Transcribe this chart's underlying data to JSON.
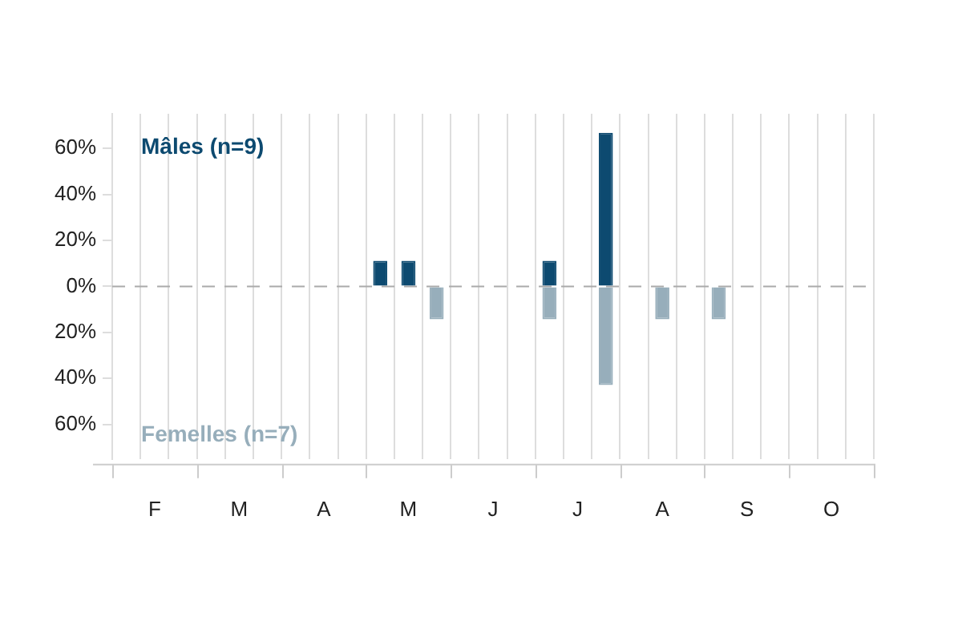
{
  "chart_data": {
    "type": "bar",
    "stacked": true,
    "categories": [
      null,
      "F",
      null,
      null,
      "M",
      null,
      null,
      "A",
      null,
      null,
      "M",
      null,
      null,
      "J",
      null,
      null,
      "J",
      null,
      null,
      "A",
      null,
      null,
      "S",
      null,
      null,
      "O",
      null
    ],
    "series": [
      {
        "name": "Mâles (n=9)",
        "color": "#0d4a70",
        "values": [
          null,
          null,
          null,
          null,
          null,
          null,
          null,
          null,
          null,
          11.1,
          11.1,
          null,
          null,
          null,
          null,
          11.1,
          null,
          66.7,
          null,
          null,
          null,
          null,
          null,
          null,
          null,
          null,
          null
        ]
      },
      {
        "name": "Femelles (n=7)",
        "color": "#97aebb",
        "values": [
          null,
          null,
          null,
          null,
          null,
          null,
          null,
          null,
          null,
          null,
          null,
          -14.3,
          null,
          null,
          null,
          -14.3,
          null,
          -42.9,
          null,
          -14.3,
          null,
          -14.3,
          null,
          null,
          null,
          null,
          null
        ]
      }
    ],
    "ylim": [
      -75,
      75
    ],
    "yticks": [
      {
        "value": -60,
        "label": "60%"
      },
      {
        "value": -40,
        "label": "40%"
      },
      {
        "value": -20,
        "label": "20%"
      },
      {
        "value": 0,
        "label": "0%"
      },
      {
        "value": 20,
        "label": "20%"
      },
      {
        "value": 40,
        "label": "40%"
      },
      {
        "value": 60,
        "label": "60%"
      }
    ],
    "grid": "x",
    "ref_lines": [
      {
        "axis": "y",
        "value": 0,
        "color": "#aaaaaa",
        "line_style": "dashed"
      }
    ]
  }
}
